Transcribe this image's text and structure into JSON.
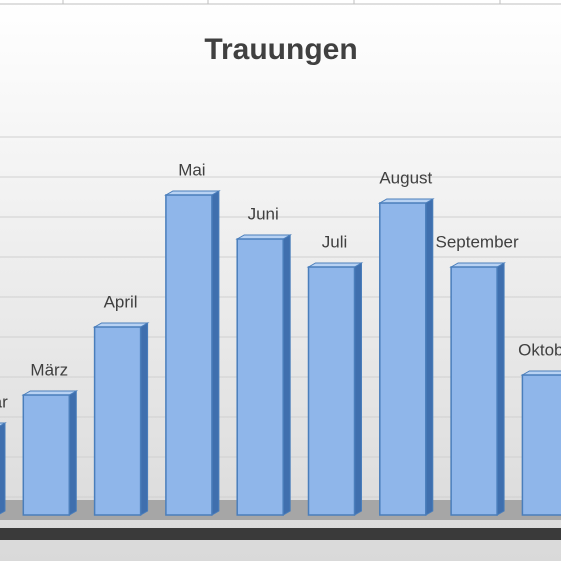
{
  "chart_data": {
    "type": "bar",
    "title": "Trauungen",
    "categories": [
      "Februar",
      "März",
      "April",
      "Mai",
      "Juni",
      "Juli",
      "August",
      "September",
      "Oktober"
    ],
    "values": [
      2.2,
      3.0,
      4.7,
      8.0,
      6.9,
      6.2,
      7.8,
      6.2,
      3.5
    ],
    "color": "#8fb6ea",
    "ylim": [
      0,
      10
    ]
  }
}
